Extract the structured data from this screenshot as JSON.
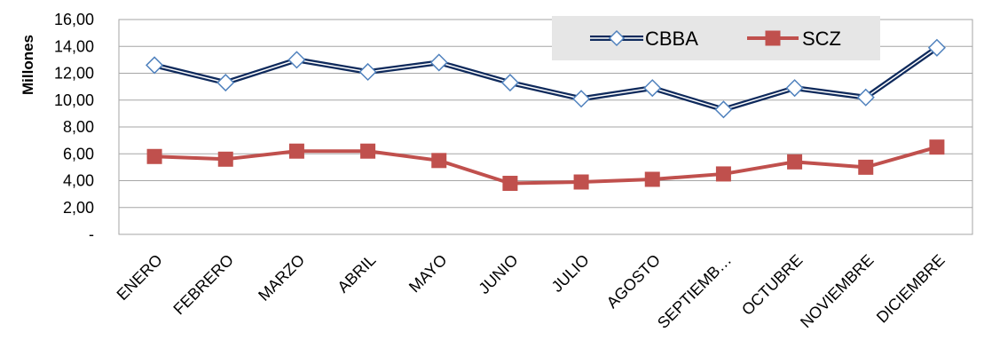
{
  "chart_data": {
    "type": "line",
    "ylabel": "Millones",
    "xlabel": "",
    "ylim": [
      0,
      16
    ],
    "yticks": [
      "-",
      "2,00",
      "4,00",
      "6,00",
      "8,00",
      "10,00",
      "12,00",
      "14,00",
      "16,00"
    ],
    "categories": [
      "ENERO",
      "FEBRERO",
      "MARZO",
      "ABRIL",
      "MAYO",
      "JUNIO",
      "JULIO",
      "AGOSTO",
      "SEPTIEMB…",
      "OCTUBRE",
      "NOVIEMBRE",
      "DICIEMBRE"
    ],
    "grid": "horizontal",
    "legend": "top-right",
    "series": [
      {
        "name": "CBBA",
        "marker": "diamond",
        "color": "#0f2a5c",
        "values": [
          12.6,
          11.3,
          13.0,
          12.1,
          12.8,
          11.3,
          10.1,
          10.9,
          9.3,
          10.9,
          10.2,
          13.9
        ]
      },
      {
        "name": "SCZ",
        "marker": "square",
        "color": "#c0504d",
        "values": [
          5.8,
          5.6,
          6.2,
          6.2,
          5.5,
          3.8,
          3.9,
          4.1,
          4.5,
          5.4,
          5.0,
          6.5
        ]
      }
    ]
  }
}
